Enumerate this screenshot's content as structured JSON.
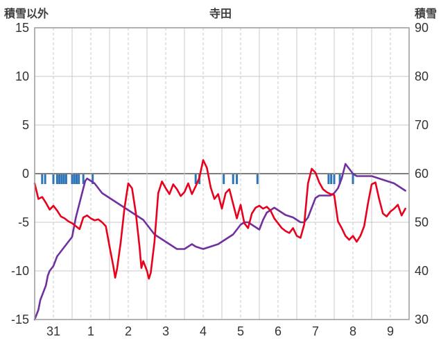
{
  "header": {
    "left_axis_title": "積雪以外",
    "title": "寺田",
    "right_axis_title": "積雪"
  },
  "chart_data": {
    "type": "line",
    "title": "寺田",
    "legend": "none",
    "grid": "on",
    "x_axis": {
      "labels": [
        "31",
        "1",
        "2",
        "3",
        "4",
        "5",
        "6",
        "7",
        "8",
        "9"
      ],
      "min": 0,
      "max": 10,
      "solid_gridlines_every_day": true,
      "dashed_gridlines_every_half_day": true
    },
    "left_axis": {
      "label": "積雪以外",
      "min": -15,
      "max": 15,
      "ticks": [
        15,
        10,
        5,
        0,
        -5,
        -10,
        -15
      ]
    },
    "right_axis": {
      "label": "積雪",
      "min": 30,
      "max": 90,
      "ticks": [
        90,
        80,
        70,
        60,
        50,
        40,
        30
      ]
    },
    "series": [
      {
        "name": "積雪以外",
        "axis": "left",
        "color": "#e8001c",
        "points": [
          [
            0.0,
            -1.0
          ],
          [
            0.1,
            -2.6
          ],
          [
            0.2,
            -2.4
          ],
          [
            0.3,
            -3.0
          ],
          [
            0.4,
            -3.7
          ],
          [
            0.5,
            -3.3
          ],
          [
            0.6,
            -3.8
          ],
          [
            0.7,
            -4.4
          ],
          [
            0.8,
            -4.6
          ],
          [
            0.9,
            -4.9
          ],
          [
            1.0,
            -5.1
          ],
          [
            1.1,
            -5.4
          ],
          [
            1.2,
            -5.7
          ],
          [
            1.3,
            -4.5
          ],
          [
            1.4,
            -4.3
          ],
          [
            1.5,
            -4.6
          ],
          [
            1.6,
            -4.8
          ],
          [
            1.7,
            -4.7
          ],
          [
            1.8,
            -5.0
          ],
          [
            1.9,
            -5.4
          ],
          [
            2.0,
            -7.5
          ],
          [
            2.1,
            -9.5
          ],
          [
            2.15,
            -10.7
          ],
          [
            2.2,
            -9.8
          ],
          [
            2.3,
            -7.0
          ],
          [
            2.4,
            -3.5
          ],
          [
            2.5,
            -1.0
          ],
          [
            2.6,
            -1.5
          ],
          [
            2.7,
            -4.0
          ],
          [
            2.8,
            -7.5
          ],
          [
            2.85,
            -9.7
          ],
          [
            2.9,
            -9.0
          ],
          [
            3.0,
            -10.0
          ],
          [
            3.05,
            -10.8
          ],
          [
            3.1,
            -10.2
          ],
          [
            3.2,
            -7.0
          ],
          [
            3.3,
            -2.0
          ],
          [
            3.4,
            -0.8
          ],
          [
            3.5,
            -1.5
          ],
          [
            3.6,
            -2.1
          ],
          [
            3.7,
            -1.1
          ],
          [
            3.8,
            -1.6
          ],
          [
            3.9,
            -2.3
          ],
          [
            4.0,
            -1.9
          ],
          [
            4.1,
            -1.0
          ],
          [
            4.2,
            -2.1
          ],
          [
            4.3,
            -1.3
          ],
          [
            4.4,
            -0.4
          ],
          [
            4.5,
            1.4
          ],
          [
            4.6,
            0.6
          ],
          [
            4.7,
            -1.4
          ],
          [
            4.8,
            -2.6
          ],
          [
            4.9,
            -2.1
          ],
          [
            5.0,
            -3.6
          ],
          [
            5.1,
            -2.0
          ],
          [
            5.2,
            -1.6
          ],
          [
            5.3,
            -3.1
          ],
          [
            5.4,
            -4.6
          ],
          [
            5.5,
            -3.2
          ],
          [
            5.6,
            -5.1
          ],
          [
            5.7,
            -5.6
          ],
          [
            5.8,
            -4.1
          ],
          [
            5.9,
            -3.5
          ],
          [
            6.0,
            -3.3
          ],
          [
            6.1,
            -3.6
          ],
          [
            6.2,
            -3.4
          ],
          [
            6.3,
            -3.8
          ],
          [
            6.4,
            -4.6
          ],
          [
            6.5,
            -5.1
          ],
          [
            6.6,
            -5.6
          ],
          [
            6.7,
            -5.9
          ],
          [
            6.8,
            -6.1
          ],
          [
            6.9,
            -5.6
          ],
          [
            7.0,
            -6.4
          ],
          [
            7.1,
            -6.6
          ],
          [
            7.2,
            -5.2
          ],
          [
            7.3,
            -1.0
          ],
          [
            7.4,
            0.5
          ],
          [
            7.5,
            0.1
          ],
          [
            7.6,
            -0.9
          ],
          [
            7.7,
            -1.6
          ],
          [
            7.8,
            -1.9
          ],
          [
            7.9,
            -2.1
          ],
          [
            8.0,
            -2.2
          ],
          [
            8.1,
            -4.9
          ],
          [
            8.2,
            -5.6
          ],
          [
            8.3,
            -6.4
          ],
          [
            8.4,
            -6.8
          ],
          [
            8.5,
            -6.4
          ],
          [
            8.6,
            -7.0
          ],
          [
            8.7,
            -6.4
          ],
          [
            8.8,
            -5.4
          ],
          [
            8.9,
            -3.1
          ],
          [
            9.0,
            -1.1
          ],
          [
            9.1,
            -0.9
          ],
          [
            9.2,
            -2.6
          ],
          [
            9.3,
            -4.1
          ],
          [
            9.4,
            -4.4
          ],
          [
            9.5,
            -3.9
          ],
          [
            9.6,
            -3.6
          ],
          [
            9.7,
            -3.2
          ],
          [
            9.8,
            -4.3
          ],
          [
            9.9,
            -3.6
          ]
        ]
      },
      {
        "name": "積雪",
        "axis": "right",
        "color": "#7030a0",
        "points": [
          [
            0.0,
            30
          ],
          [
            0.1,
            32
          ],
          [
            0.15,
            34
          ],
          [
            0.2,
            35
          ],
          [
            0.3,
            37
          ],
          [
            0.35,
            39
          ],
          [
            0.4,
            40
          ],
          [
            0.5,
            41
          ],
          [
            0.6,
            43
          ],
          [
            0.7,
            44
          ],
          [
            0.8,
            45
          ],
          [
            0.9,
            46
          ],
          [
            1.0,
            47
          ],
          [
            1.05,
            49
          ],
          [
            1.1,
            51
          ],
          [
            1.2,
            54
          ],
          [
            1.3,
            57
          ],
          [
            1.35,
            58.5
          ],
          [
            1.4,
            59
          ],
          [
            1.5,
            58.5
          ],
          [
            1.6,
            58
          ],
          [
            1.7,
            57
          ],
          [
            1.8,
            56
          ],
          [
            1.9,
            55.5
          ],
          [
            2.0,
            55
          ],
          [
            2.1,
            54.5
          ],
          [
            2.2,
            54
          ],
          [
            2.3,
            53.5
          ],
          [
            2.5,
            52.5
          ],
          [
            2.7,
            51.5
          ],
          [
            2.9,
            50.5
          ],
          [
            3.0,
            49.5
          ],
          [
            3.1,
            48.5
          ],
          [
            3.2,
            47.5
          ],
          [
            3.4,
            46.5
          ],
          [
            3.6,
            45.5
          ],
          [
            3.7,
            45
          ],
          [
            3.8,
            44.5
          ],
          [
            4.0,
            44.5
          ],
          [
            4.1,
            45
          ],
          [
            4.2,
            45.5
          ],
          [
            4.3,
            45
          ],
          [
            4.5,
            44.5
          ],
          [
            4.7,
            45
          ],
          [
            4.9,
            45.5
          ],
          [
            5.0,
            46
          ],
          [
            5.1,
            46.5
          ],
          [
            5.2,
            47
          ],
          [
            5.3,
            47.5
          ],
          [
            5.4,
            48.5
          ],
          [
            5.5,
            49.5
          ],
          [
            5.6,
            50
          ],
          [
            5.7,
            50
          ],
          [
            5.8,
            49.5
          ],
          [
            5.9,
            49
          ],
          [
            6.0,
            48.5
          ],
          [
            6.1,
            50.5
          ],
          [
            6.2,
            52
          ],
          [
            6.3,
            52.5
          ],
          [
            6.4,
            53
          ],
          [
            6.5,
            52.5
          ],
          [
            6.6,
            52
          ],
          [
            6.7,
            51.5
          ],
          [
            6.9,
            51
          ],
          [
            7.0,
            50.5
          ],
          [
            7.1,
            50
          ],
          [
            7.2,
            50
          ],
          [
            7.3,
            51
          ],
          [
            7.4,
            53
          ],
          [
            7.5,
            55
          ],
          [
            7.6,
            55.5
          ],
          [
            7.7,
            55.5
          ],
          [
            7.9,
            55.5
          ],
          [
            8.0,
            56
          ],
          [
            8.1,
            57
          ],
          [
            8.2,
            59
          ],
          [
            8.3,
            62
          ],
          [
            8.35,
            61.5
          ],
          [
            8.4,
            61
          ],
          [
            8.5,
            60
          ],
          [
            8.6,
            59.5
          ],
          [
            8.8,
            59.5
          ],
          [
            9.0,
            59.5
          ],
          [
            9.2,
            59
          ],
          [
            9.4,
            58.5
          ],
          [
            9.6,
            58
          ],
          [
            9.7,
            57.5
          ],
          [
            9.8,
            57
          ],
          [
            9.9,
            56.5
          ]
        ]
      }
    ],
    "event_marks": {
      "name": "precipitation-ticks",
      "color": "#2e75b6",
      "x_days": [
        0.2,
        0.28,
        0.5,
        0.6,
        0.66,
        0.72,
        0.78,
        0.84,
        1.0,
        1.06,
        1.12,
        1.18,
        1.3,
        1.55,
        4.3,
        4.4,
        5.05,
        5.3,
        5.4,
        5.95,
        7.85,
        7.92,
        8.0,
        8.15,
        8.5
      ]
    },
    "colors": {
      "grid": "#c9c9c9",
      "zero_line": "#7f7f7f",
      "frame": "#a0a0a0",
      "text": "#333333",
      "header_text": "#3f3f3f"
    }
  }
}
